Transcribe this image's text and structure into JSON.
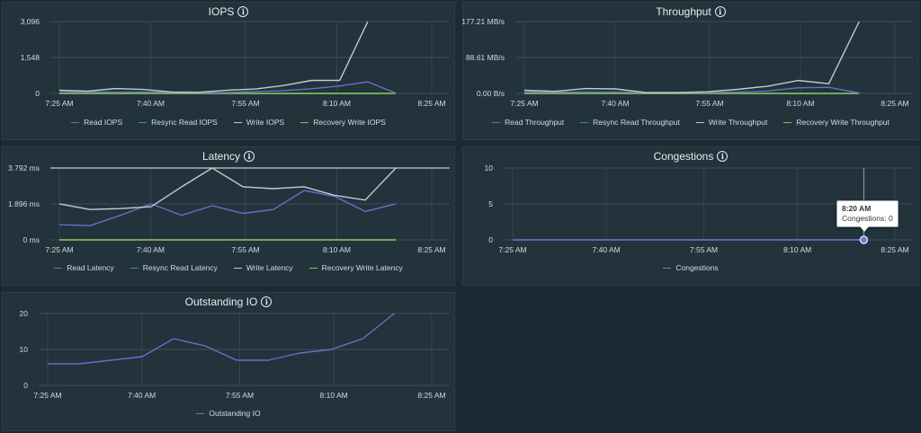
{
  "colors": {
    "read": "#6a6fc4",
    "resync": "#2f90b6",
    "write": "#c7c9ce",
    "recovery": "#8bc34a",
    "congestions": "#7a73d4"
  },
  "icons": {
    "info": "info-icon"
  },
  "x_ticks": [
    "7:25 AM",
    "7:40 AM",
    "7:55 AM",
    "8:10 AM",
    "8:25 AM"
  ],
  "chart_data": [
    {
      "id": "iops",
      "type": "line",
      "title": "IOPS",
      "y_ticks": [
        "3,096",
        "1,548",
        "0"
      ],
      "ylim": [
        0,
        3096
      ],
      "grid": true,
      "legend": "bottom",
      "series": [
        {
          "name": "Read IOPS",
          "color": "read",
          "points": [
            [
              0,
              80
            ],
            [
              1,
              70
            ],
            [
              2,
              50
            ],
            [
              3,
              60
            ],
            [
              4,
              50
            ],
            [
              5,
              30
            ],
            [
              6,
              40
            ],
            [
              7,
              80
            ],
            [
              8,
              120
            ],
            [
              9,
              200
            ],
            [
              10,
              320
            ],
            [
              11,
              500
            ],
            [
              12,
              10
            ]
          ]
        },
        {
          "name": "Resync Read IOPS",
          "color": "resync",
          "points": [
            [
              0,
              0
            ],
            [
              12,
              0
            ]
          ]
        },
        {
          "name": "Write IOPS",
          "color": "write",
          "points": [
            [
              0,
              140
            ],
            [
              1,
              100
            ],
            [
              2,
              210
            ],
            [
              3,
              170
            ],
            [
              4,
              60
            ],
            [
              5,
              50
            ],
            [
              6,
              140
            ],
            [
              7,
              190
            ],
            [
              8,
              340
            ],
            [
              9,
              560
            ],
            [
              10,
              560
            ],
            [
              11,
              3096
            ]
          ]
        },
        {
          "name": "Recovery Write IOPS",
          "color": "recovery",
          "points": [
            [
              0,
              0
            ],
            [
              12,
              0
            ]
          ]
        }
      ]
    },
    {
      "id": "throughput",
      "type": "line",
      "title": "Throughput",
      "y_ticks": [
        "177.21 MB/s",
        "88.61 MB/s",
        "0.00 B/s"
      ],
      "ylim": [
        0,
        177.21
      ],
      "grid": true,
      "legend": "bottom",
      "series": [
        {
          "name": "Read Throughput",
          "color": "read",
          "points": [
            [
              0,
              4
            ],
            [
              1,
              3
            ],
            [
              2,
              3
            ],
            [
              3,
              3
            ],
            [
              4,
              2
            ],
            [
              5,
              2
            ],
            [
              6,
              2
            ],
            [
              7,
              3
            ],
            [
              8,
              6
            ],
            [
              9,
              14
            ],
            [
              10,
              15
            ],
            [
              11,
              1
            ]
          ]
        },
        {
          "name": "Resync Read Throughput",
          "color": "resync",
          "points": [
            [
              0,
              0
            ],
            [
              11,
              0
            ]
          ]
        },
        {
          "name": "Write Throughput",
          "color": "write",
          "points": [
            [
              0,
              8
            ],
            [
              1,
              5
            ],
            [
              2,
              12
            ],
            [
              3,
              11
            ],
            [
              4,
              2
            ],
            [
              5,
              2
            ],
            [
              6,
              4
            ],
            [
              7,
              10
            ],
            [
              8,
              18
            ],
            [
              9,
              32
            ],
            [
              10,
              24
            ],
            [
              11,
              177.21
            ]
          ]
        },
        {
          "name": "Recovery Write Throughput",
          "color": "recovery",
          "points": [
            [
              0,
              0
            ],
            [
              11,
              0
            ]
          ]
        }
      ]
    },
    {
      "id": "latency",
      "type": "line",
      "title": "Latency",
      "y_ticks": [
        "3.792 ms",
        "1.896 ms",
        "0 ms"
      ],
      "ylim": [
        0,
        3.792
      ],
      "grid": true,
      "legend": "bottom",
      "series": [
        {
          "name": "Read Latency",
          "color": "read",
          "points": [
            [
              0,
              0.8
            ],
            [
              1,
              0.75
            ],
            [
              2,
              1.3
            ],
            [
              3,
              1.9
            ],
            [
              4,
              1.3
            ],
            [
              5,
              1.8
            ],
            [
              6,
              1.4
            ],
            [
              7,
              1.6
            ],
            [
              8,
              2.6
            ],
            [
              9,
              2.3
            ],
            [
              10,
              1.5
            ],
            [
              11,
              1.9
            ]
          ]
        },
        {
          "name": "Resync Read Latency",
          "color": "resync",
          "points": [
            [
              0,
              0
            ],
            [
              11,
              0
            ]
          ]
        },
        {
          "name": "Write Latency",
          "color": "write",
          "points": [
            [
              0,
              1.9
            ],
            [
              1,
              1.6
            ],
            [
              2,
              1.65
            ],
            [
              3,
              1.75
            ],
            [
              4,
              2.8
            ],
            [
              5,
              3.792
            ],
            [
              6,
              2.8
            ],
            [
              7,
              2.7
            ],
            [
              8,
              2.8
            ],
            [
              9,
              2.35
            ],
            [
              10,
              2.1
            ],
            [
              11,
              3.792
            ]
          ]
        },
        {
          "name": "Recovery Write Latency",
          "color": "recovery",
          "points": [
            [
              0,
              0
            ],
            [
              11,
              0
            ]
          ]
        }
      ]
    },
    {
      "id": "congestions",
      "type": "line",
      "title": "Congestions",
      "y_ticks": [
        "10",
        "5",
        "0"
      ],
      "ylim": [
        0,
        10
      ],
      "grid": true,
      "legend": "bottom",
      "series": [
        {
          "name": "Congestions",
          "color": "congestions",
          "points": [
            [
              0,
              0
            ],
            [
              11,
              0
            ]
          ]
        }
      ],
      "tooltip": {
        "time": "8:20 AM",
        "label": "Congestions: 0"
      }
    },
    {
      "id": "outstanding",
      "type": "line",
      "title": "Outstanding IO",
      "y_ticks": [
        "20",
        "10",
        "0"
      ],
      "ylim": [
        0,
        20
      ],
      "grid": true,
      "legend": "bottom",
      "series": [
        {
          "name": "Outstanding IO",
          "color": "read",
          "points": [
            [
              0,
              6
            ],
            [
              1,
              6
            ],
            [
              2,
              7
            ],
            [
              3,
              8
            ],
            [
              4,
              13
            ],
            [
              5,
              11
            ],
            [
              6,
              7
            ],
            [
              7,
              7
            ],
            [
              8,
              9
            ],
            [
              9,
              10
            ],
            [
              10,
              13
            ],
            [
              11,
              20
            ]
          ]
        }
      ]
    }
  ]
}
